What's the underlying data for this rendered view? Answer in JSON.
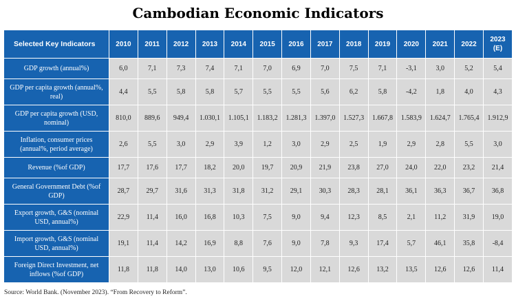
{
  "title": "Cambodian Economic Indicators",
  "header": {
    "first": "Selected Key Indicators",
    "years": [
      "2010",
      "2011",
      "2012",
      "2013",
      "2014",
      "2015",
      "2016",
      "2017",
      "2018",
      "2019",
      "2020",
      "2021",
      "2022",
      "2023 (E)"
    ]
  },
  "rows": [
    {
      "label": "GDP growth (annual%)",
      "values": [
        "6,0",
        "7,1",
        "7,3",
        "7,4",
        "7,1",
        "7,0",
        "6,9",
        "7,0",
        "7,5",
        "7,1",
        "-3,1",
        "3,0",
        "5,2",
        "5,4"
      ]
    },
    {
      "label": "GDP per capita growth (annual%, real)",
      "values": [
        "4,4",
        "5,5",
        "5,8",
        "5,8",
        "5,7",
        "5,5",
        "5,5",
        "5,6",
        "6,2",
        "5,8",
        "-4,2",
        "1,8",
        "4,0",
        "4,3"
      ]
    },
    {
      "label": "GDP per capita growth (USD, nominal)",
      "values": [
        "810,0",
        "889,6",
        "949,4",
        "1.030,1",
        "1.105,1",
        "1.183,2",
        "1.281,3",
        "1.397,0",
        "1.527,3",
        "1.667,8",
        "1.583,9",
        "1.624,7",
        "1.765,4",
        "1.912,9"
      ]
    },
    {
      "label": "Inflation, consumer prices (annual%, period average)",
      "values": [
        "2,6",
        "5,5",
        "3,0",
        "2,9",
        "3,9",
        "1,2",
        "3,0",
        "2,9",
        "2,5",
        "1,9",
        "2,9",
        "2,8",
        "5,5",
        "3,0"
      ]
    },
    {
      "label": "Revenue (%of GDP)",
      "values": [
        "17,7",
        "17,6",
        "17,7",
        "18,2",
        "20,0",
        "19,7",
        "20,9",
        "21,9",
        "23,8",
        "27,0",
        "24,0",
        "22,0",
        "23,2",
        "21,4"
      ]
    },
    {
      "label": "General Government Debt (%of GDP)",
      "values": [
        "28,7",
        "29,7",
        "31,6",
        "31,3",
        "31,8",
        "31,2",
        "29,1",
        "30,3",
        "28,3",
        "28,1",
        "36,1",
        "36,3",
        "36,7",
        "36,8"
      ]
    },
    {
      "label": "Export growth, G&S (nominal USD, annual%)",
      "values": [
        "22,9",
        "11,4",
        "16,0",
        "16,8",
        "10,3",
        "7,5",
        "9,0",
        "9,4",
        "12,3",
        "8,5",
        "2,1",
        "11,2",
        "31,9",
        "19,0"
      ]
    },
    {
      "label": "Import growth, G&S (nominal USD, annual%)",
      "values": [
        "19,1",
        "11,4",
        "14,2",
        "16,9",
        "8,8",
        "7,6",
        "9,0",
        "7,8",
        "9,3",
        "17,4",
        "5,7",
        "46,1",
        "35,8",
        "-8,4"
      ]
    },
    {
      "label": "Foreign Direct Investment, net inflows (%of GDP)",
      "values": [
        "11,8",
        "11,8",
        "14,0",
        "13,0",
        "10,6",
        "9,5",
        "12,0",
        "12,1",
        "12,6",
        "13,2",
        "13,5",
        "12,6",
        "12,6",
        "11,4"
      ]
    }
  ],
  "source": "Source: World Bank. (November 2023). “From Recovery to Reform”."
}
